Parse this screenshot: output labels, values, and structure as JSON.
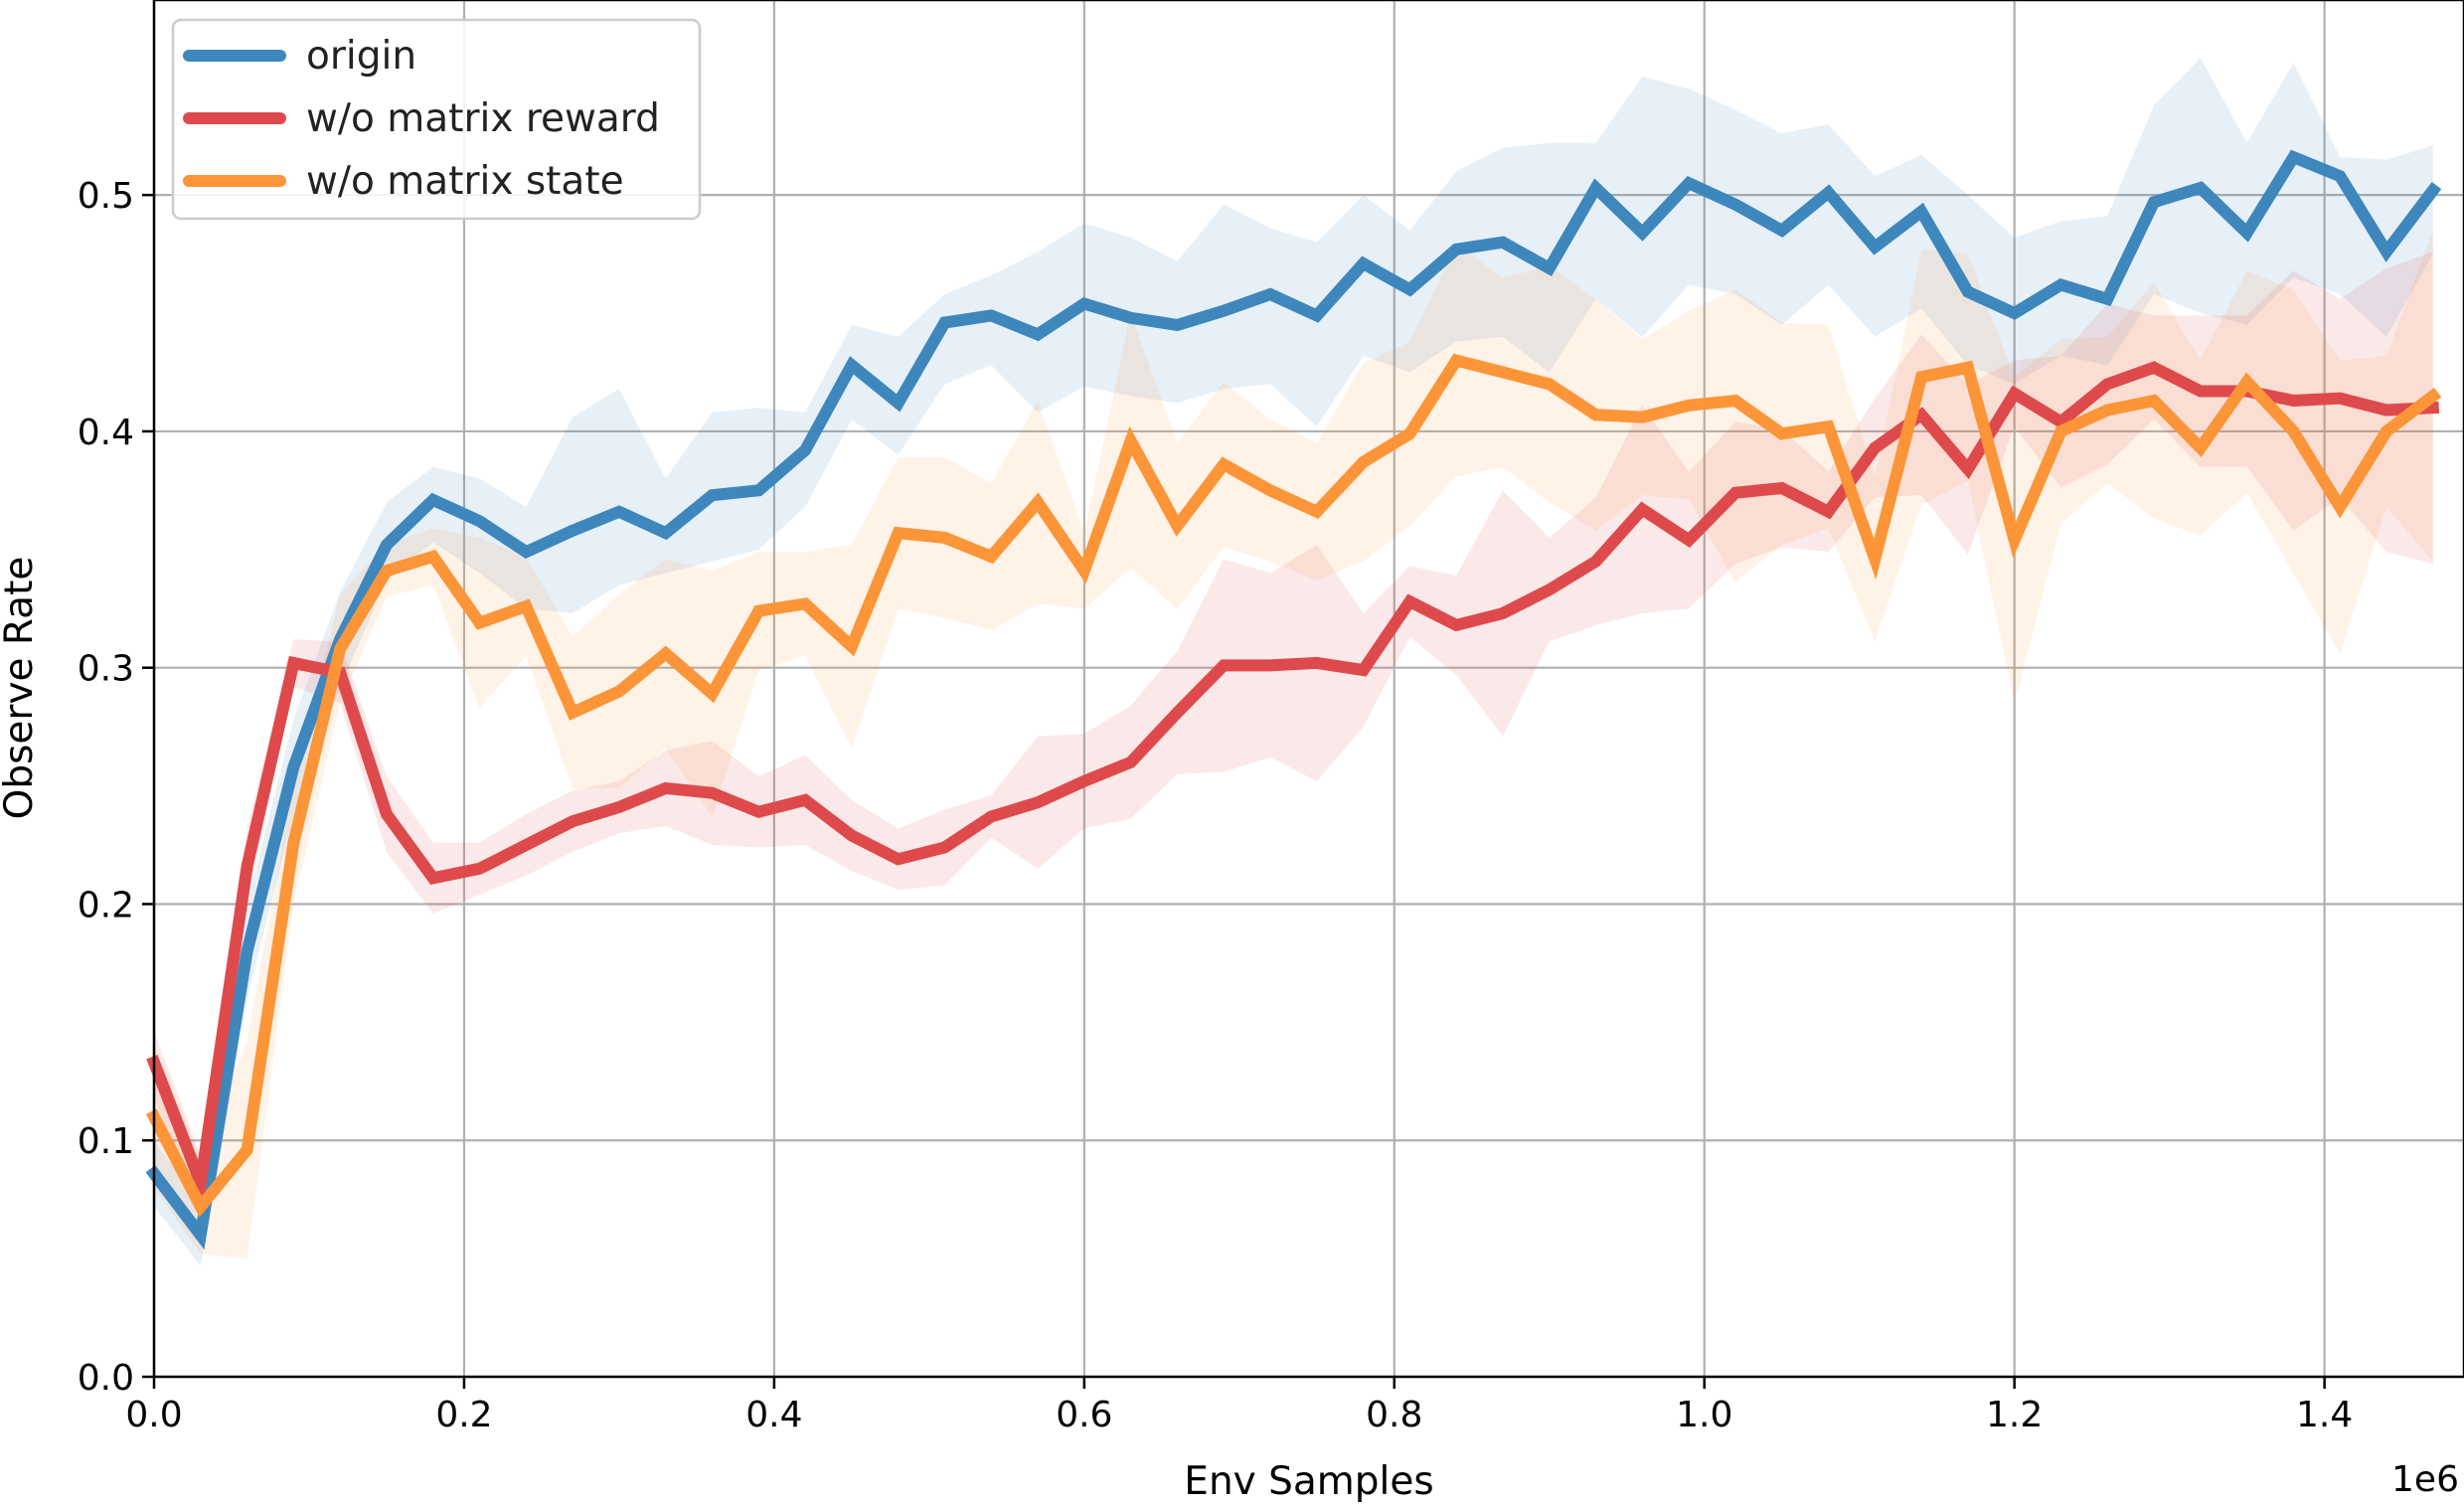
{
  "chart_data": {
    "type": "line",
    "title": "",
    "xlabel": "Env Samples",
    "ylabel": "Observe Rate",
    "x_multiplier_label": "1e6",
    "xlim": [
      0,
      1.49
    ],
    "ylim": [
      0,
      0.5825
    ],
    "x_ticks": [
      0.0,
      0.2,
      0.4,
      0.6,
      0.8,
      1.0,
      1.2,
      1.4
    ],
    "x_tick_labels": [
      "0.0",
      "0.2",
      "0.4",
      "0.6",
      "0.8",
      "1.0",
      "1.2",
      "1.4"
    ],
    "y_ticks": [
      0.0,
      0.1,
      0.2,
      0.3,
      0.4,
      0.5
    ],
    "y_tick_labels": [
      "0.0",
      "0.1",
      "0.2",
      "0.3",
      "0.4",
      "0.5"
    ],
    "grid": true,
    "legend_position": "top-left",
    "x": [
      0.0,
      0.03,
      0.06,
      0.09,
      0.12,
      0.15,
      0.18,
      0.21,
      0.24,
      0.27,
      0.3,
      0.33,
      0.36,
      0.39,
      0.42,
      0.45,
      0.48,
      0.51,
      0.54,
      0.57,
      0.6,
      0.63,
      0.66,
      0.69,
      0.72,
      0.75,
      0.78,
      0.81,
      0.84,
      0.87,
      0.9,
      0.93,
      0.96,
      0.99,
      1.02,
      1.05,
      1.08,
      1.11,
      1.14,
      1.17,
      1.2,
      1.23,
      1.26,
      1.29,
      1.32,
      1.35,
      1.38,
      1.41,
      1.44,
      1.47
    ],
    "series": [
      {
        "name": "origin",
        "color": "#3d87bd",
        "values": [
          0.086,
          0.06,
          0.18,
          0.258,
          0.312,
          0.352,
          0.371,
          0.362,
          0.349,
          0.358,
          0.366,
          0.357,
          0.373,
          0.375,
          0.392,
          0.428,
          0.412,
          0.446,
          0.449,
          0.441,
          0.454,
          0.448,
          0.445,
          0.451,
          0.458,
          0.449,
          0.471,
          0.46,
          0.477,
          0.48,
          0.469,
          0.503,
          0.484,
          0.505,
          0.496,
          0.485,
          0.501,
          0.478,
          0.493,
          0.459,
          0.45,
          0.462,
          0.456,
          0.497,
          0.503,
          0.484,
          0.516,
          0.508,
          0.476,
          0.502
        ],
        "lower": [
          0.072,
          0.047,
          0.16,
          0.238,
          0.292,
          0.337,
          0.353,
          0.34,
          0.325,
          0.323,
          0.335,
          0.34,
          0.345,
          0.35,
          0.368,
          0.405,
          0.39,
          0.42,
          0.428,
          0.408,
          0.419,
          0.415,
          0.412,
          0.418,
          0.42,
          0.402,
          0.432,
          0.425,
          0.438,
          0.44,
          0.425,
          0.456,
          0.44,
          0.462,
          0.458,
          0.445,
          0.462,
          0.44,
          0.452,
          0.428,
          0.42,
          0.432,
          0.428,
          0.458,
          0.45,
          0.445,
          0.465,
          0.458,
          0.44,
          0.475
        ],
        "upper": [
          0.1,
          0.073,
          0.2,
          0.278,
          0.332,
          0.37,
          0.385,
          0.38,
          0.368,
          0.406,
          0.418,
          0.38,
          0.408,
          0.41,
          0.408,
          0.445,
          0.44,
          0.458,
          0.466,
          0.476,
          0.488,
          0.482,
          0.472,
          0.496,
          0.486,
          0.48,
          0.5,
          0.485,
          0.51,
          0.52,
          0.522,
          0.522,
          0.55,
          0.545,
          0.536,
          0.526,
          0.53,
          0.508,
          0.517,
          0.5,
          0.482,
          0.489,
          0.491,
          0.538,
          0.558,
          0.522,
          0.556,
          0.516,
          0.515,
          0.521
        ]
      },
      {
        "name": "w/o matrix reward",
        "color": "#de4a4c",
        "values": [
          0.133,
          0.082,
          0.216,
          0.302,
          0.298,
          0.238,
          0.211,
          0.215,
          0.225,
          0.235,
          0.241,
          0.249,
          0.247,
          0.239,
          0.244,
          0.229,
          0.219,
          0.224,
          0.237,
          0.243,
          0.252,
          0.26,
          0.281,
          0.301,
          0.301,
          0.302,
          0.299,
          0.328,
          0.318,
          0.323,
          0.333,
          0.345,
          0.367,
          0.354,
          0.374,
          0.376,
          0.366,
          0.393,
          0.407,
          0.384,
          0.416,
          0.404,
          0.42,
          0.427,
          0.417,
          0.417,
          0.413,
          0.414,
          0.409,
          0.41
        ],
        "lower": [
          0.118,
          0.07,
          0.2,
          0.292,
          0.285,
          0.222,
          0.196,
          0.204,
          0.212,
          0.222,
          0.23,
          0.233,
          0.225,
          0.224,
          0.225,
          0.214,
          0.206,
          0.208,
          0.228,
          0.215,
          0.232,
          0.236,
          0.255,
          0.256,
          0.262,
          0.252,
          0.275,
          0.313,
          0.297,
          0.271,
          0.311,
          0.318,
          0.323,
          0.325,
          0.344,
          0.351,
          0.349,
          0.372,
          0.373,
          0.348,
          0.402,
          0.376,
          0.386,
          0.405,
          0.385,
          0.385,
          0.358,
          0.372,
          0.349,
          0.344
        ],
        "upper": [
          0.146,
          0.094,
          0.232,
          0.312,
          0.311,
          0.254,
          0.226,
          0.226,
          0.238,
          0.248,
          0.252,
          0.265,
          0.269,
          0.254,
          0.263,
          0.244,
          0.232,
          0.24,
          0.246,
          0.271,
          0.272,
          0.284,
          0.307,
          0.346,
          0.34,
          0.352,
          0.323,
          0.343,
          0.339,
          0.375,
          0.355,
          0.372,
          0.411,
          0.383,
          0.404,
          0.401,
          0.383,
          0.414,
          0.441,
          0.42,
          0.43,
          0.432,
          0.454,
          0.449,
          0.449,
          0.449,
          0.468,
          0.456,
          0.469,
          0.476
        ]
      },
      {
        "name": "w/o matrix state",
        "color": "#fb9538",
        "values": [
          0.11,
          0.072,
          0.096,
          0.226,
          0.308,
          0.341,
          0.347,
          0.319,
          0.326,
          0.281,
          0.29,
          0.306,
          0.289,
          0.324,
          0.327,
          0.309,
          0.357,
          0.355,
          0.347,
          0.37,
          0.341,
          0.396,
          0.36,
          0.386,
          0.375,
          0.366,
          0.387,
          0.399,
          0.43,
          0.425,
          0.42,
          0.407,
          0.406,
          0.411,
          0.413,
          0.399,
          0.402,
          0.346,
          0.423,
          0.427,
          0.354,
          0.4,
          0.409,
          0.413,
          0.393,
          0.421,
          0.4,
          0.368,
          0.4,
          0.415
        ],
        "lower": [
          0.08,
          0.052,
          0.05,
          0.2,
          0.285,
          0.33,
          0.335,
          0.283,
          0.305,
          0.249,
          0.249,
          0.266,
          0.237,
          0.299,
          0.305,
          0.266,
          0.325,
          0.321,
          0.316,
          0.327,
          0.325,
          0.342,
          0.325,
          0.351,
          0.345,
          0.337,
          0.345,
          0.36,
          0.381,
          0.385,
          0.37,
          0.358,
          0.373,
          0.371,
          0.336,
          0.352,
          0.359,
          0.311,
          0.369,
          0.379,
          0.285,
          0.361,
          0.378,
          0.363,
          0.356,
          0.374,
          0.34,
          0.306,
          0.368,
          0.345
        ],
        "upper": [
          0.14,
          0.092,
          0.142,
          0.252,
          0.331,
          0.352,
          0.359,
          0.355,
          0.347,
          0.313,
          0.331,
          0.346,
          0.341,
          0.349,
          0.349,
          0.352,
          0.389,
          0.389,
          0.378,
          0.413,
          0.357,
          0.45,
          0.395,
          0.421,
          0.405,
          0.395,
          0.429,
          0.438,
          0.479,
          0.465,
          0.47,
          0.456,
          0.439,
          0.451,
          0.46,
          0.446,
          0.445,
          0.381,
          0.477,
          0.475,
          0.423,
          0.439,
          0.44,
          0.463,
          0.43,
          0.468,
          0.46,
          0.43,
          0.432,
          0.485
        ]
      }
    ]
  }
}
